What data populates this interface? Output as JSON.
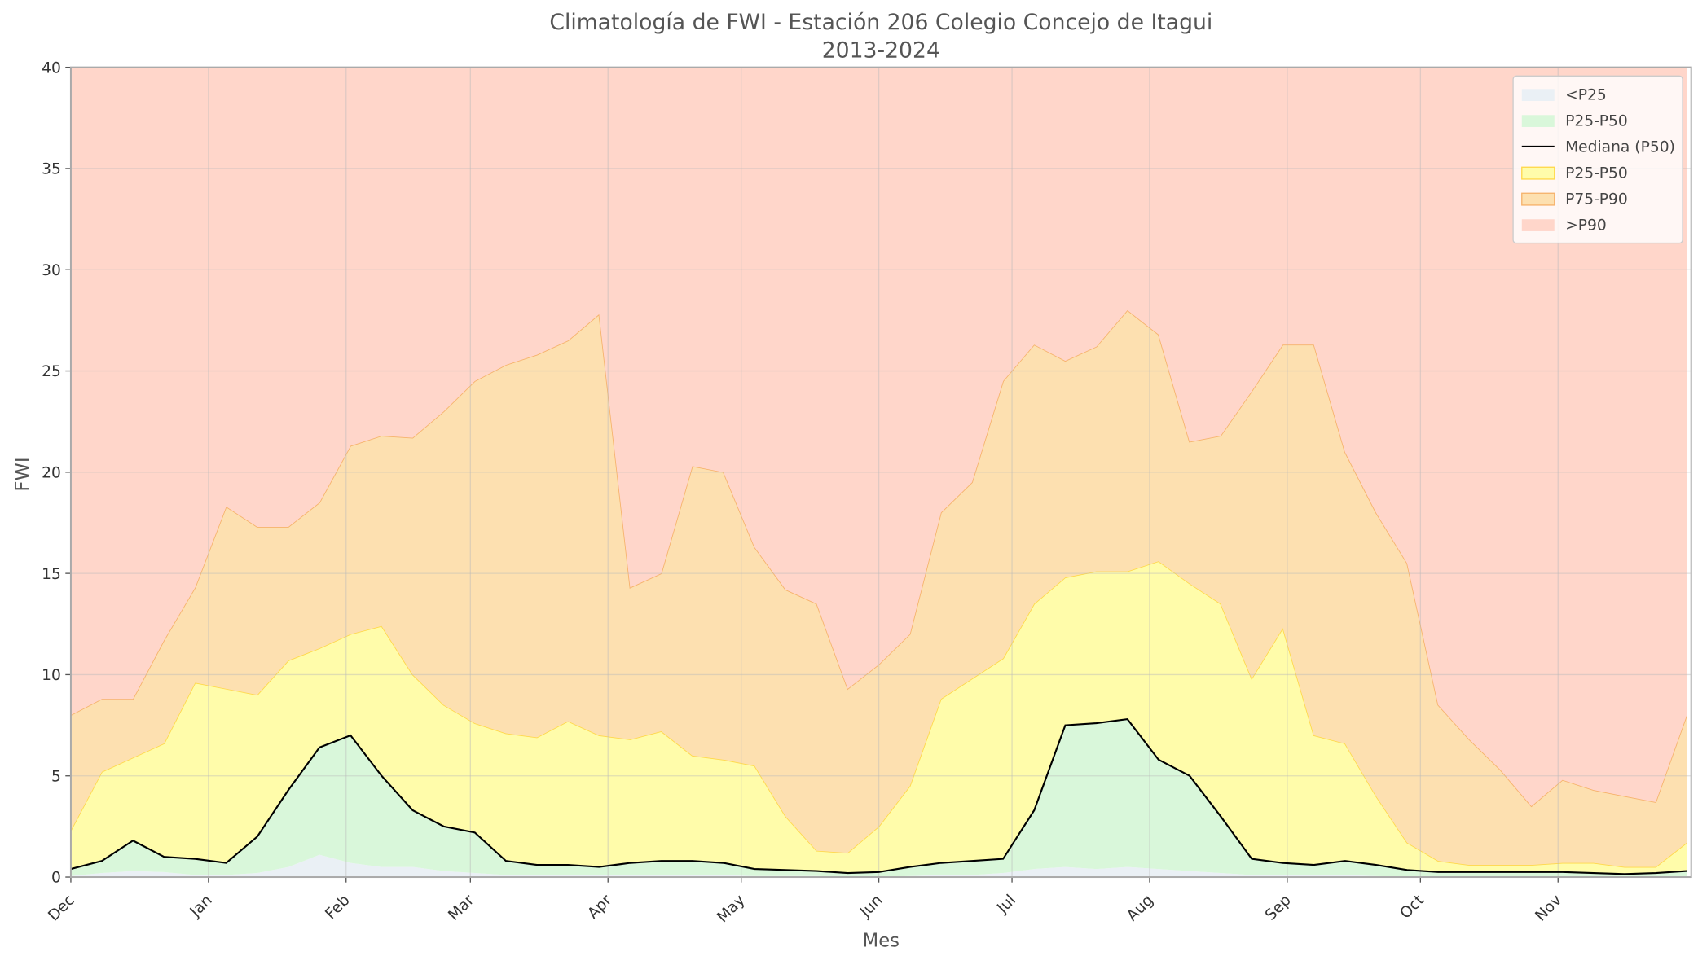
{
  "chart_data": {
    "type": "percentile_bands",
    "title": "Climatología de FWI - Estación 206 Colegio Concejo de Itagui",
    "subtitle": "2013-2024",
    "x_label": "Mes",
    "y_label": "FWI",
    "x": [
      0,
      7,
      14,
      21,
      28,
      35,
      42,
      49,
      56,
      63,
      70,
      77,
      84,
      91,
      98,
      105,
      112,
      119,
      126,
      133,
      140,
      147,
      154,
      161,
      168,
      175,
      182,
      189,
      196,
      203,
      210,
      217,
      224,
      231,
      238,
      245,
      252,
      259,
      266,
      273,
      280,
      287,
      294,
      301,
      308,
      315,
      322,
      329,
      336,
      343,
      350,
      357,
      364
    ],
    "xlim": [
      0,
      365
    ],
    "xticks": [
      {
        "value": 0,
        "label": "Dec"
      },
      {
        "value": 31,
        "label": "Jan"
      },
      {
        "value": 62,
        "label": "Feb"
      },
      {
        "value": 90,
        "label": "Mar"
      },
      {
        "value": 121,
        "label": "Apr"
      },
      {
        "value": 151,
        "label": "May"
      },
      {
        "value": 182,
        "label": "Jun"
      },
      {
        "value": 212,
        "label": "Jul"
      },
      {
        "value": 243,
        "label": "Aug"
      },
      {
        "value": 274,
        "label": "Sep"
      },
      {
        "value": 304,
        "label": "Oct"
      },
      {
        "value": 335,
        "label": "Nov"
      }
    ],
    "ylim": [
      0,
      40
    ],
    "yticks": [
      0,
      5,
      10,
      15,
      20,
      25,
      30,
      35,
      40
    ],
    "grid": true,
    "legend": "upper right",
    "series": [
      {
        "name": "<P25",
        "color": "#eaf0f5",
        "values": [
          0.05,
          0.2,
          0.3,
          0.25,
          0.1,
          0.1,
          0.2,
          0.5,
          1.1,
          0.7,
          0.5,
          0.5,
          0.3,
          0.2,
          0.1,
          0.1,
          0.1,
          0.1,
          0.1,
          0.1,
          0.1,
          0.1,
          0.05,
          0.05,
          0.05,
          0,
          0,
          0.05,
          0.1,
          0.1,
          0.2,
          0.4,
          0.5,
          0.4,
          0.5,
          0.4,
          0.3,
          0.2,
          0.1,
          0.1,
          0.1,
          0.1,
          0.05,
          0,
          0,
          0,
          0,
          0,
          0,
          0,
          0,
          0,
          0
        ]
      },
      {
        "name": "P25-P50",
        "color": "#d9f7da"
      },
      {
        "name": "Mediana (P50)",
        "color": "#000000",
        "style": "line",
        "values": [
          0.4,
          0.8,
          1.8,
          1.0,
          0.9,
          0.7,
          2.0,
          4.3,
          6.4,
          7.0,
          5.0,
          3.3,
          2.5,
          2.2,
          0.8,
          0.6,
          0.6,
          0.5,
          0.7,
          0.8,
          0.8,
          0.7,
          0.4,
          0.35,
          0.3,
          0.2,
          0.25,
          0.5,
          0.7,
          0.8,
          0.9,
          3.3,
          7.5,
          7.6,
          7.8,
          5.8,
          5.0,
          3.0,
          0.9,
          0.7,
          0.6,
          0.8,
          0.6,
          0.35,
          0.25,
          0.25,
          0.25,
          0.25,
          0.25,
          0.2,
          0.15,
          0.2,
          0.3
        ]
      },
      {
        "name": "P25-P50",
        "color": "#fffcaa",
        "edge": "#ffd84a",
        "values": [
          2.3,
          5.2,
          5.9,
          6.6,
          9.6,
          9.3,
          9.0,
          10.7,
          11.3,
          12.0,
          12.4,
          10.0,
          8.5,
          7.6,
          7.1,
          6.9,
          7.7,
          7.0,
          6.8,
          7.2,
          6.0,
          5.8,
          5.5,
          3.0,
          1.3,
          1.2,
          2.5,
          4.5,
          8.8,
          9.8,
          10.8,
          13.5,
          14.8,
          15.1,
          15.1,
          15.6,
          14.5,
          13.5,
          9.8,
          12.3,
          7.0,
          6.6,
          4.0,
          1.7,
          0.8,
          0.6,
          0.6,
          0.6,
          0.7,
          0.7,
          0.5,
          0.5,
          1.7
        ]
      },
      {
        "name": "P75-P90",
        "color": "#fde0b0",
        "edge": "#f6b26b",
        "values": [
          8,
          8.8,
          8.8,
          11.7,
          14.3,
          18.3,
          17.3,
          17.3,
          18.5,
          21.3,
          21.8,
          21.7,
          23,
          24.5,
          25.3,
          25.8,
          26.5,
          27.8,
          14.3,
          15,
          20.3,
          20,
          16.3,
          14.2,
          13.5,
          9.3,
          10.5,
          12,
          18,
          19.5,
          24.5,
          26.3,
          25.5,
          26.2,
          28,
          26.8,
          21.5,
          21.8,
          24,
          26.3,
          26.3,
          21,
          18,
          15.5,
          8.5,
          6.8,
          5.3,
          3.5,
          4.8,
          4.3,
          4,
          3.7,
          8
        ]
      },
      {
        "name": ">P90",
        "color": "#ffd6ca"
      }
    ]
  }
}
